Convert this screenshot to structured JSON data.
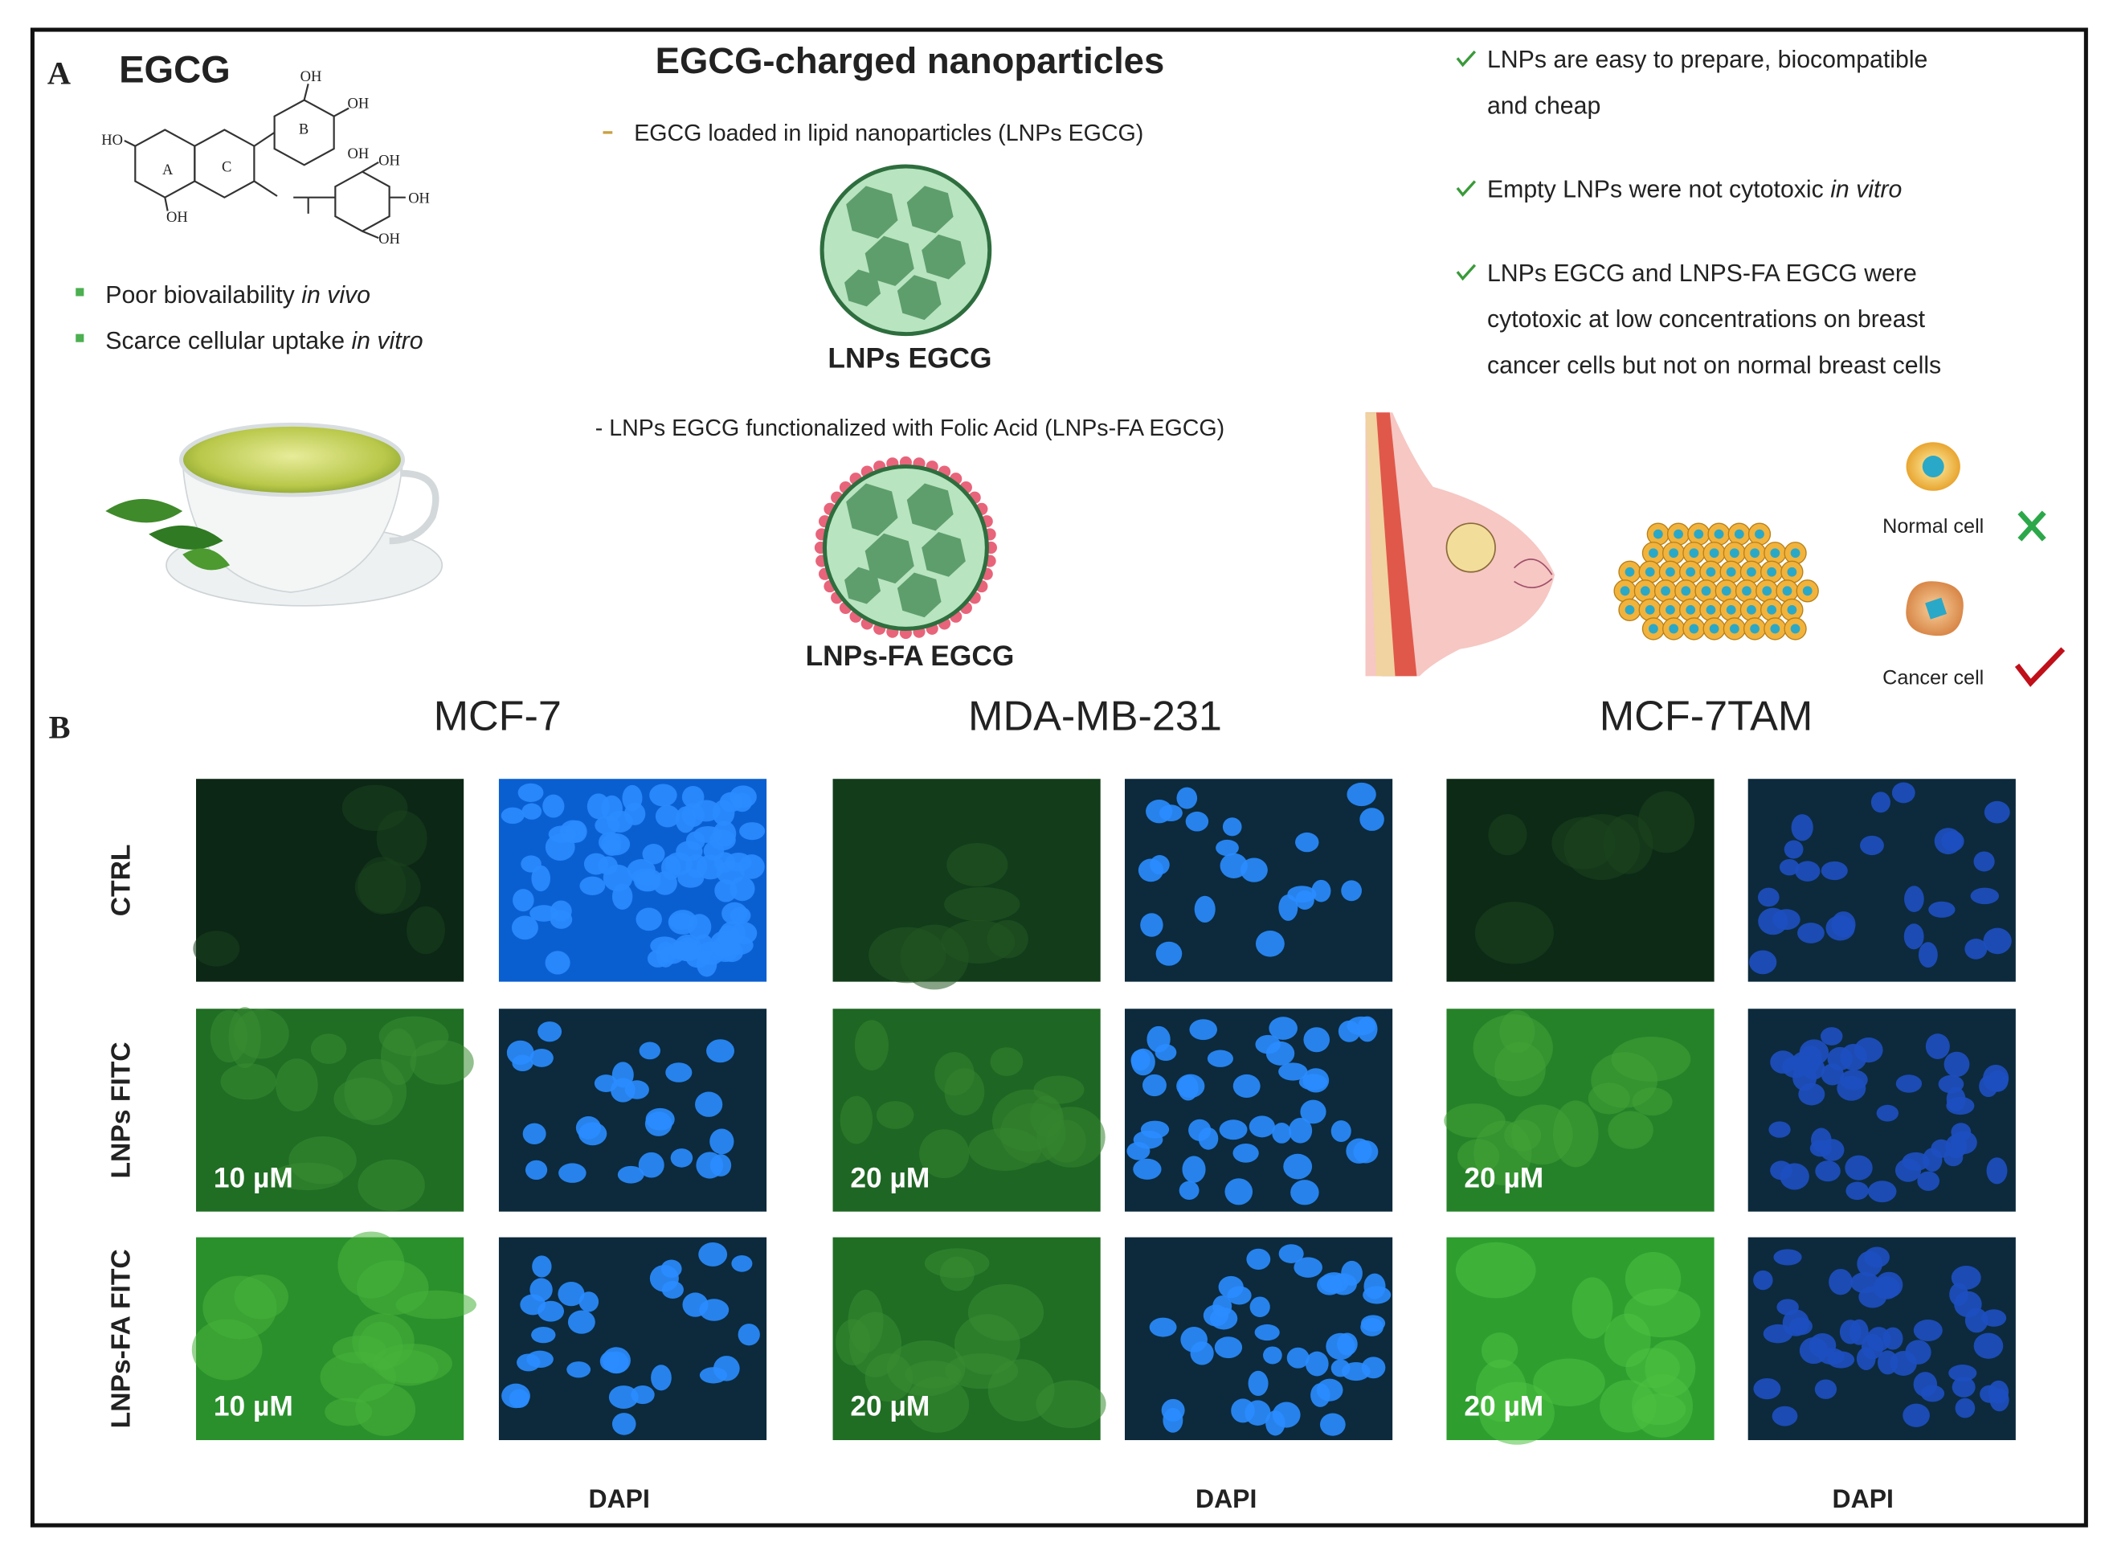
{
  "panel_a": {
    "label": "A",
    "compound": "EGCG",
    "structure_labels": [
      "OH",
      "OH",
      "B",
      "OH",
      "HO",
      "A",
      "C",
      "OH",
      "OH",
      "OH",
      "OH"
    ],
    "drawbacks": [
      {
        "text": "Poor biovailability",
        "emphasis": "in vivo"
      },
      {
        "text": "Scarce cellular uptake",
        "emphasis": "in vitro"
      }
    ],
    "title": "EGCG-charged nanoparticles",
    "formulations": [
      {
        "description": "EGCG loaded in lipid nanoparticles (LNPs EGCG)",
        "name": "LNPs EGCG"
      },
      {
        "description": "- LNPs EGCG functionalized with Folic Acid (LNPs-FA EGCG)",
        "name": "LNPs-FA EGCG"
      }
    ],
    "findings": [
      {
        "lines": [
          "LNPs are easy to prepare, biocompatible",
          "and cheap"
        ]
      },
      {
        "lines": [
          "Empty LNPs were not cytotoxic"
        ],
        "emphasis": "in vitro"
      },
      {
        "lines": [
          "LNPs EGCG and LNPS-FA EGCG were",
          "cytotoxic at low concentrations on breast",
          "cancer cells but not on normal breast cells"
        ]
      }
    ],
    "cell_types": [
      "Normal cell",
      "Cancer cell"
    ]
  },
  "panel_b": {
    "label": "B",
    "cell_lines": [
      "MCF-7",
      "MDA-MB-231",
      "MCF-7TAM"
    ],
    "treatments": [
      "CTRL",
      "LNPs FITC",
      "LNPs-FA FITC"
    ],
    "concentration_labels": [
      [
        "10 µM",
        "10 µM"
      ],
      [
        "20 µM",
        "20 µM"
      ],
      [
        "20 µM",
        "20 µM"
      ]
    ],
    "channel_labels": [
      "DAPI",
      "DAPI",
      "DAPI"
    ]
  }
}
